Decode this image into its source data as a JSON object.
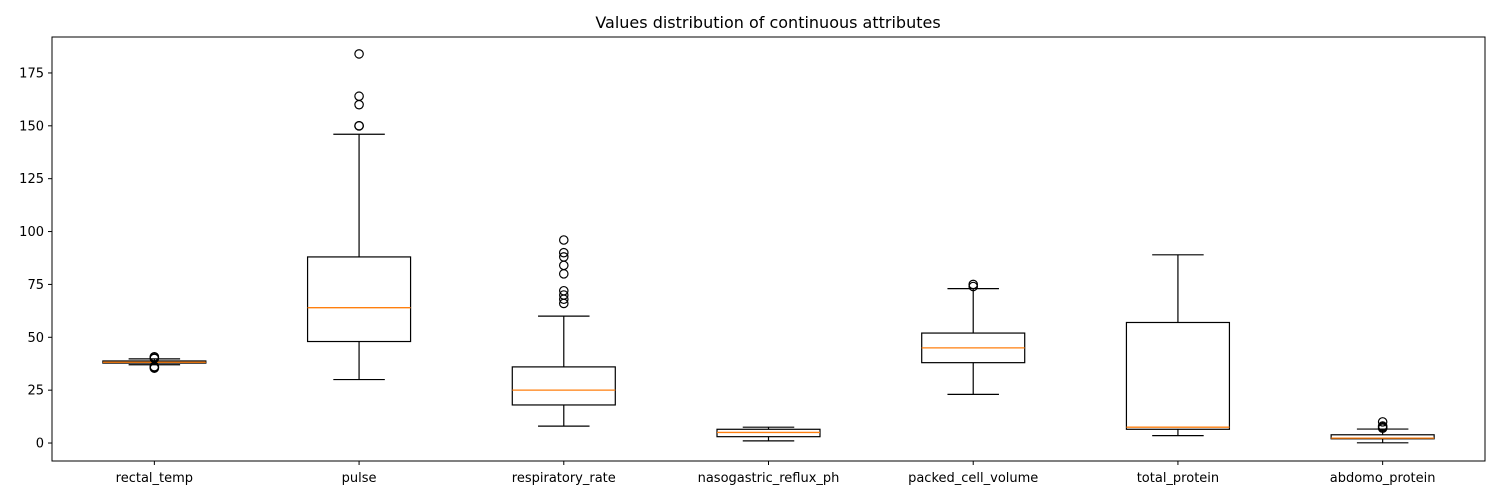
{
  "chart_data": {
    "type": "boxplot",
    "title": "Values distribution of continuous attributes",
    "xlabel": "",
    "ylabel": "",
    "ylim": [
      -8.5,
      192
    ],
    "yticks": [
      0,
      25,
      50,
      75,
      100,
      125,
      150,
      175
    ],
    "grid": false,
    "colors": {
      "box": "#000000",
      "median": "#ff7f0e",
      "outlier": "#000000",
      "background": "#ffffff"
    },
    "series": [
      {
        "label": "rectal_temp",
        "whisker_low": 37,
        "q1": 37.8,
        "median": 38.2,
        "q3": 38.8,
        "whisker_high": 39.8,
        "outliers": [
          35.4,
          35.8,
          36.1,
          40.0,
          40.3,
          40.8
        ]
      },
      {
        "label": "pulse",
        "whisker_low": 30,
        "q1": 48,
        "median": 64,
        "q3": 88,
        "whisker_high": 146,
        "outliers": [
          150,
          150,
          160,
          164,
          184
        ]
      },
      {
        "label": "respiratory_rate",
        "whisker_low": 8,
        "q1": 18,
        "median": 25,
        "q3": 36,
        "whisker_high": 60,
        "outliers": [
          66,
          68,
          70,
          72,
          80,
          84,
          88,
          90,
          96
        ]
      },
      {
        "label": "nasogastric_reflux_ph",
        "whisker_low": 1,
        "q1": 3,
        "median": 5,
        "q3": 6.5,
        "whisker_high": 7.5,
        "outliers": []
      },
      {
        "label": "packed_cell_volume",
        "whisker_low": 23,
        "q1": 38,
        "median": 45,
        "q3": 52,
        "whisker_high": 73,
        "outliers": [
          74,
          75
        ]
      },
      {
        "label": "total_protein",
        "whisker_low": 3.5,
        "q1": 6.5,
        "median": 7.5,
        "q3": 57,
        "whisker_high": 89,
        "outliers": []
      },
      {
        "label": "abdomo_protein",
        "whisker_low": 0.1,
        "q1": 2.0,
        "median": 2.3,
        "q3": 3.9,
        "whisker_high": 6.6,
        "outliers": [
          7.0,
          7.5,
          8.0,
          10.0
        ]
      }
    ]
  }
}
